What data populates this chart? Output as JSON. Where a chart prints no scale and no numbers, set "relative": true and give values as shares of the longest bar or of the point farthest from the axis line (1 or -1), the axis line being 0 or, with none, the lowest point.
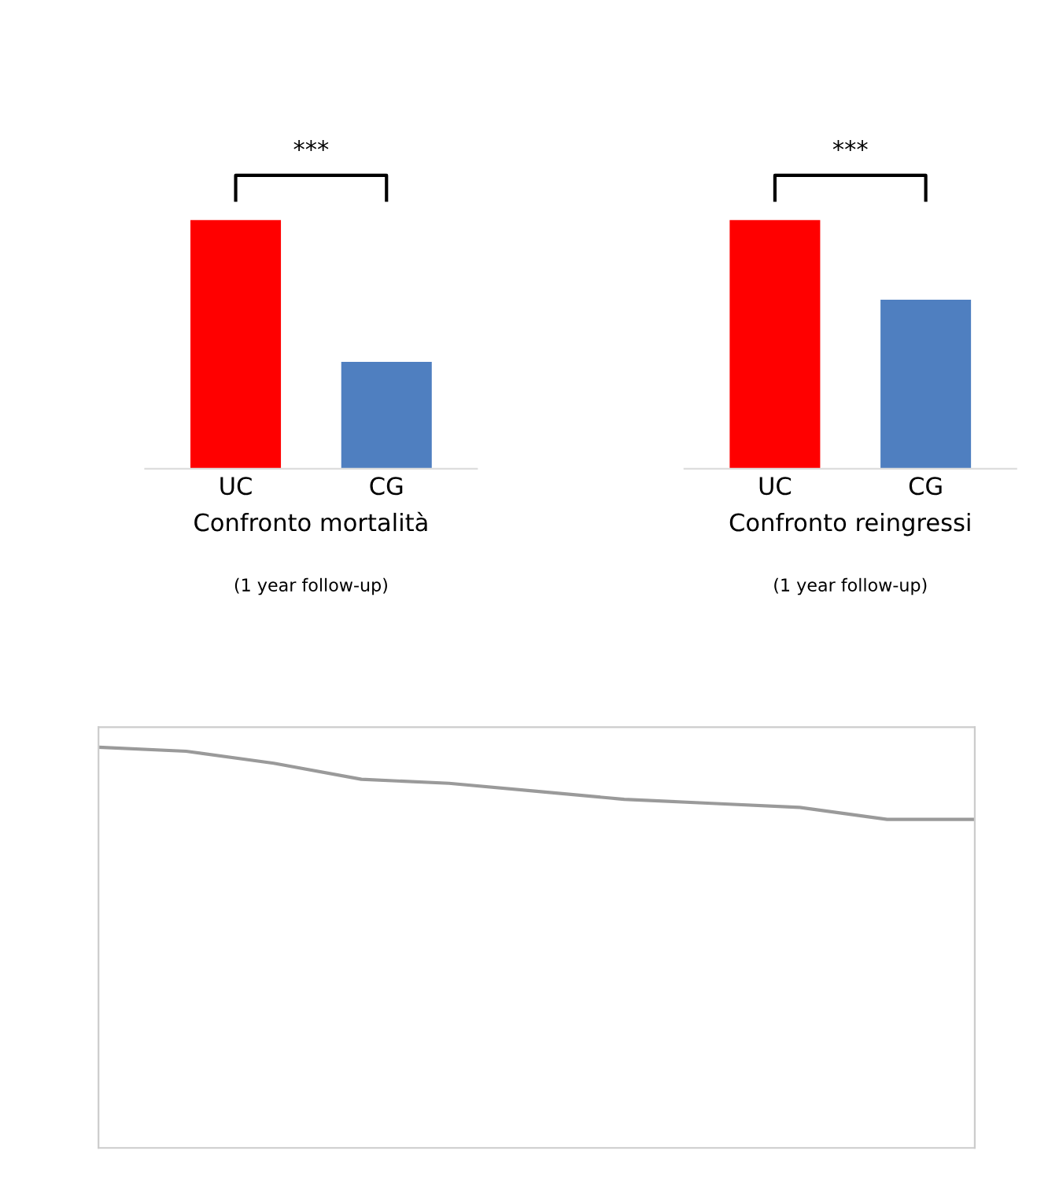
{
  "chart_data": [
    {
      "type": "bar",
      "relative": true,
      "categories": [
        "UC",
        "CG"
      ],
      "colors": [
        "#ff0000",
        "#4f7fc0"
      ],
      "values": [
        1,
        0.43
      ],
      "xlabel": "Confronto mortalità",
      "annotations": [
        "***",
        "(1 year follow-up)"
      ]
    },
    {
      "type": "bar",
      "relative": true,
      "categories": [
        "UC",
        "CG"
      ],
      "colors": [
        "#ff0000",
        "#4f7fc0"
      ],
      "values": [
        1,
        0.68
      ],
      "xlabel": "Confronto reingressi",
      "annotations": [
        "***",
        "(1 year follow-up)"
      ]
    },
    {
      "type": "line",
      "relative": true,
      "categories": [
        null,
        null,
        null,
        null,
        null,
        null,
        null,
        null,
        null,
        null,
        null
      ],
      "series": [
        {
          "color": "#9a9a9a",
          "values": [
            1,
            0.99,
            0.96,
            0.92,
            0.91,
            0.89,
            0.87,
            0.86,
            0.85,
            0.82,
            0.82
          ]
        }
      ]
    }
  ]
}
